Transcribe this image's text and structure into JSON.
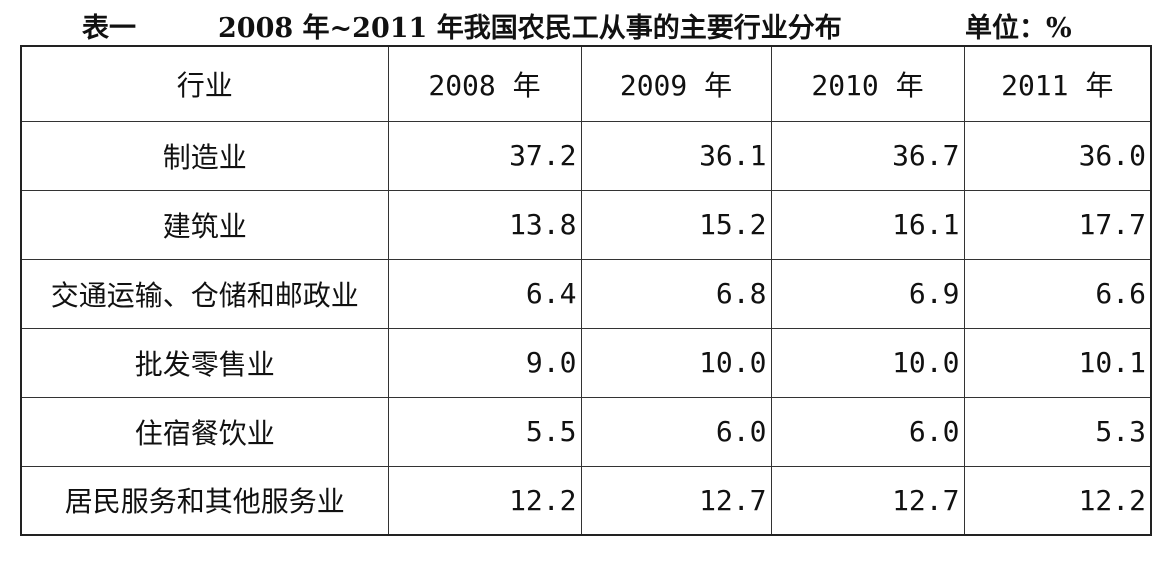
{
  "header": {
    "label": "表一",
    "title": "2008 年~2011 年我国农民工从事的主要行业分布",
    "unit": "单位：%"
  },
  "table": {
    "columns": [
      "行业",
      "2008 年",
      "2009 年",
      "2010 年",
      "2011 年"
    ],
    "rows": [
      [
        "制造业",
        "37.2",
        "36.1",
        "36.7",
        "36.0"
      ],
      [
        "建筑业",
        "13.8",
        "15.2",
        "16.1",
        "17.7"
      ],
      [
        "交通运输、仓储和邮政业",
        "6.4",
        "6.8",
        "6.9",
        "6.6"
      ],
      [
        "批发零售业",
        "9.0",
        "10.0",
        "10.0",
        "10.1"
      ],
      [
        "住宿餐饮业",
        "5.5",
        "6.0",
        "6.0",
        "5.3"
      ],
      [
        "居民服务和其他服务业",
        "12.2",
        "12.7",
        "12.7",
        "12.2"
      ]
    ]
  }
}
